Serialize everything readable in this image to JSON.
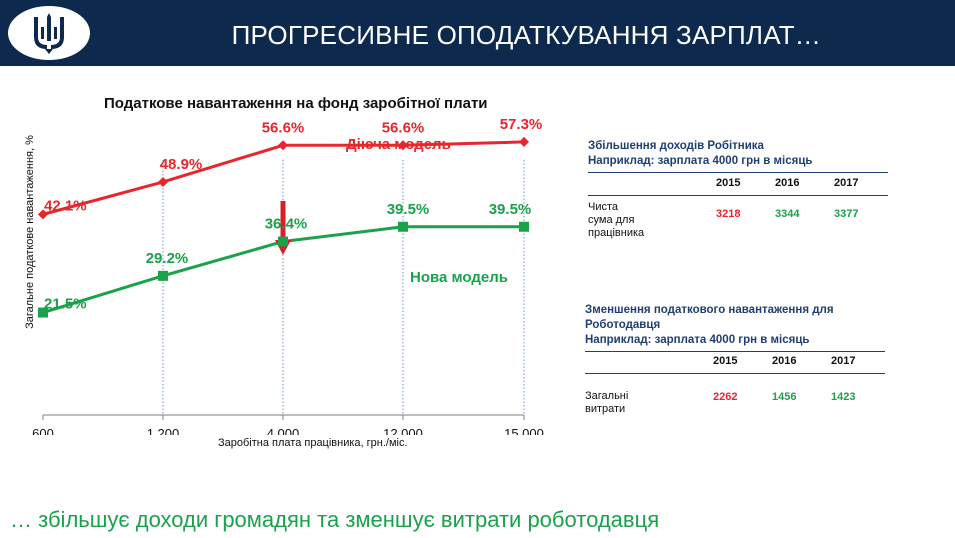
{
  "header": {
    "title": "ПРОГРЕСИВНЕ ОПОДАТКУВАННЯ ЗАРПЛАТ…",
    "logo_icon": "trident-icon"
  },
  "chart_data": {
    "type": "line",
    "title": "Податкове навантаження на фонд заробітної плати",
    "xlabel": "Заробітна плата працівника, грн./міс.",
    "ylabel": "Загальне податкове навантаження, %",
    "categories": [
      "600",
      "1,200",
      "4,000",
      "12,000",
      "15,000"
    ],
    "series": [
      {
        "name": "Діюча модель",
        "color": "#e8262b",
        "marker": "diamond",
        "values": [
          42.1,
          48.9,
          56.6,
          56.6,
          57.3
        ],
        "labels": [
          "42.1%",
          "48.9%",
          "56.6%",
          "56.6%",
          "57.3%"
        ]
      },
      {
        "name": "Нова модель",
        "color": "#1aa24a",
        "marker": "square",
        "values": [
          21.5,
          29.2,
          36.4,
          39.5,
          39.5
        ],
        "labels": [
          "21.5%",
          "29.2%",
          "36.4%",
          "39.5%",
          "39.5%"
        ]
      }
    ],
    "ylim": [
      0,
      64
    ],
    "grid": "vertical dotted",
    "annotation": "arrow from Діюча модель to Нова модель at 4,000"
  },
  "worker_panel": {
    "title_line1": "Збільшення доходів Робітника",
    "title_line2": "Наприклад:  зарплата 4000 грн в місяць",
    "years": [
      "2015",
      "2016",
      "2017"
    ],
    "row_label_line1": "Чиста сума для",
    "row_label_line2": "працівника",
    "values": [
      "3218",
      "3344",
      "3377"
    ],
    "value_colors": [
      "#e8262b",
      "#1aa24a",
      "#1aa24a"
    ]
  },
  "employer_panel": {
    "title_line1": "Зменшення податкового навантаження для",
    "title_line2": "Роботодавця",
    "title_line3": "Наприклад: зарплата 4000 грн в місяць",
    "years": [
      "2015",
      "2016",
      "2017"
    ],
    "row_label": "Загальні витрати",
    "values": [
      "2262",
      "1456",
      "1423"
    ],
    "value_colors": [
      "#e8262b",
      "#1aa24a",
      "#1aa24a"
    ]
  },
  "footer": {
    "text": "… збільшує доходи громадян та зменшує витрати роботодавця"
  }
}
